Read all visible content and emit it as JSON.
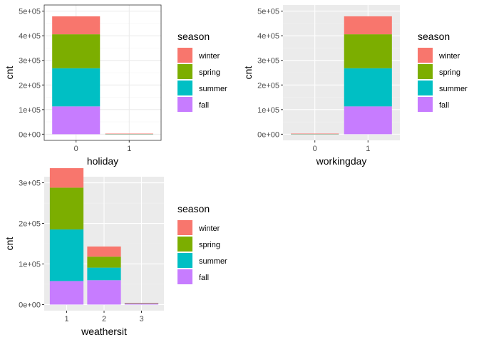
{
  "colors": {
    "winter": "#F8766D",
    "spring": "#7CAE00",
    "summer": "#00BFC4",
    "fall": "#C77CFF"
  },
  "chart_data": [
    {
      "type": "bar",
      "stacked": true,
      "panel_style": "bw",
      "xlabel": "holiday",
      "ylabel": "cnt",
      "categories": [
        "0",
        "1"
      ],
      "yticks": [
        "0e+00",
        "1e+05",
        "2e+05",
        "3e+05",
        "4e+05",
        "5e+05"
      ],
      "ylim": [
        0,
        500000
      ],
      "legend": {
        "title": "season",
        "position": "right"
      },
      "series": [
        {
          "name": "winter",
          "values": [
            73000,
            500
          ]
        },
        {
          "name": "spring",
          "values": [
            138000,
            500
          ]
        },
        {
          "name": "summer",
          "values": [
            155000,
            500
          ]
        },
        {
          "name": "fall",
          "values": [
            113000,
            1000
          ]
        }
      ]
    },
    {
      "type": "bar",
      "stacked": true,
      "panel_style": "grey",
      "xlabel": "workingday",
      "ylabel": "cnt",
      "categories": [
        "0",
        "1"
      ],
      "yticks": [
        "0e+00",
        "1e+05",
        "2e+05",
        "3e+05",
        "4e+05",
        "5e+05"
      ],
      "ylim": [
        0,
        500000
      ],
      "legend": {
        "title": "season",
        "position": "right"
      },
      "series": [
        {
          "name": "winter",
          "values": [
            500,
            73000
          ]
        },
        {
          "name": "spring",
          "values": [
            500,
            138000
          ]
        },
        {
          "name": "summer",
          "values": [
            500,
            155000
          ]
        },
        {
          "name": "fall",
          "values": [
            1000,
            113000
          ]
        }
      ]
    },
    {
      "type": "bar",
      "stacked": true,
      "panel_style": "grey",
      "xlabel": "weathersit",
      "ylabel": "cnt",
      "categories": [
        "1",
        "2",
        "3"
      ],
      "yticks": [
        "0e+00",
        "1e+05",
        "2e+05",
        "3e+05"
      ],
      "ylim": [
        0,
        300000
      ],
      "legend": {
        "title": "season",
        "position": "right"
      },
      "series": [
        {
          "name": "winter",
          "values": [
            48000,
            25000,
            200
          ]
        },
        {
          "name": "spring",
          "values": [
            103000,
            27000,
            600
          ]
        },
        {
          "name": "summer",
          "values": [
            127000,
            31000,
            700
          ]
        },
        {
          "name": "fall",
          "values": [
            58000,
            60000,
            2500
          ]
        }
      ]
    }
  ]
}
